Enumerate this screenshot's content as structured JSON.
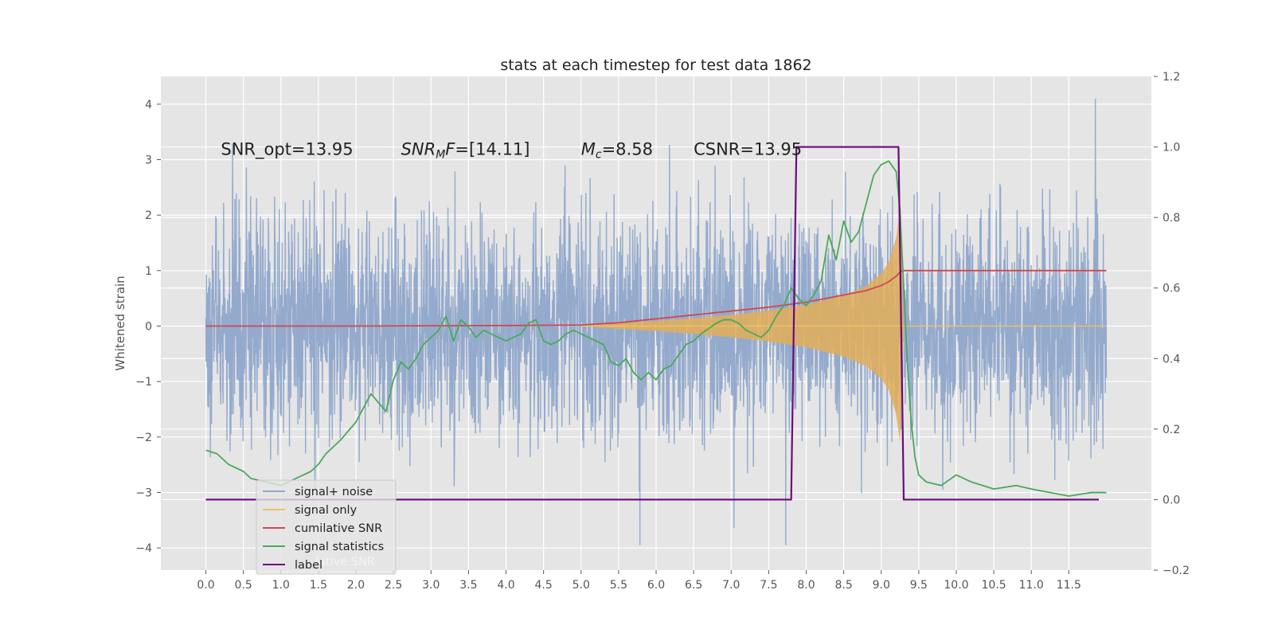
{
  "chart_data": {
    "type": "line",
    "title": "stats at each timestep for test data 1862",
    "xlabel": "",
    "ylabel": "Whitened strain",
    "y2label": "",
    "xlim": [
      -0.6,
      12.6
    ],
    "ylim": [
      -4.4,
      4.5
    ],
    "y2lim": [
      -0.2,
      1.2
    ],
    "x_ticks": [
      "0.0",
      "0.5",
      "1.0",
      "1.5",
      "2.0",
      "2.5",
      "3.0",
      "3.5",
      "4.0",
      "4.5",
      "5.0",
      "5.5",
      "6.0",
      "6.5",
      "7.0",
      "7.5",
      "8.0",
      "8.5",
      "9.0",
      "9.5",
      "10.0",
      "10.5",
      "11.0",
      "11.5"
    ],
    "y_ticks": [
      "4",
      "3",
      "2",
      "1",
      "0",
      "−1",
      "−2",
      "−3",
      "−4"
    ],
    "y2_ticks": [
      "1.2",
      "1.0",
      "0.8",
      "0.6",
      "0.4",
      "0.2",
      "0.0",
      "−0.2"
    ],
    "grid": true,
    "annotations": [
      {
        "segments": [
          {
            "text": "SNR_opt=13.95",
            "italic": false
          }
        ]
      },
      {
        "segments": [
          {
            "text": "SNR",
            "italic": true
          },
          {
            "text": "M",
            "italic": true,
            "sub": true
          },
          {
            "text": "F",
            "italic": true
          },
          {
            "text": "=[14.11]",
            "italic": false
          }
        ]
      },
      {
        "segments": [
          {
            "text": "M",
            "italic": true
          },
          {
            "text": "c",
            "italic": true,
            "sub": true
          },
          {
            "text": "=8.58",
            "italic": false
          }
        ]
      },
      {
        "segments": [
          {
            "text": "CSNR=13.95",
            "italic": false
          }
        ]
      }
    ],
    "legend": {
      "position": "lower-left",
      "entries": [
        {
          "label": "signal+ noise",
          "color": "#8fa6cb"
        },
        {
          "label": "signal only",
          "color": "#f2c45f"
        },
        {
          "label": "cumilative SNR",
          "color": "#d1484f"
        },
        {
          "label": "signal statistics",
          "color": "#4ba85a"
        },
        {
          "label": "label",
          "color": "#6a0b7a"
        }
      ],
      "ghost_text": "lative SNR"
    },
    "series": [
      {
        "name": "signal+ noise",
        "axis": "left",
        "kind": "noise",
        "x_range": [
          0.0,
          12.0
        ],
        "amplitude_std": 1.0,
        "max": 4.1,
        "min": -3.95
      },
      {
        "name": "signal only",
        "axis": "left",
        "kind": "chirp-envelope",
        "x_range": [
          5.0,
          9.3
        ],
        "envelope_x": [
          5.0,
          5.5,
          6.0,
          6.5,
          7.0,
          7.5,
          8.0,
          8.5,
          8.8,
          9.0,
          9.1,
          9.2,
          9.25,
          9.3
        ],
        "envelope_y": [
          0.0,
          0.05,
          0.09,
          0.14,
          0.2,
          0.28,
          0.38,
          0.55,
          0.72,
          0.95,
          1.15,
          1.6,
          2.1,
          0.0
        ]
      },
      {
        "name": "cumilative SNR",
        "axis": "left",
        "x": [
          0.0,
          1.0,
          2.0,
          3.0,
          4.0,
          5.0,
          5.5,
          6.0,
          6.5,
          7.0,
          7.5,
          8.0,
          8.5,
          8.8,
          9.0,
          9.1,
          9.2,
          9.25,
          9.3,
          10.0,
          11.0,
          12.0
        ],
        "y": [
          0.0,
          0.0,
          0.0,
          0.005,
          0.01,
          0.02,
          0.06,
          0.13,
          0.2,
          0.27,
          0.34,
          0.43,
          0.56,
          0.64,
          0.73,
          0.8,
          0.9,
          0.97,
          1.0,
          1.0,
          1.0,
          1.0
        ]
      },
      {
        "name": "signal statistics",
        "axis": "right",
        "x": [
          0.0,
          0.15,
          0.3,
          0.5,
          0.6,
          0.8,
          1.0,
          1.2,
          1.4,
          1.5,
          1.6,
          1.8,
          2.0,
          2.2,
          2.4,
          2.5,
          2.6,
          2.7,
          2.8,
          2.9,
          3.0,
          3.1,
          3.2,
          3.3,
          3.4,
          3.5,
          3.6,
          3.7,
          3.8,
          3.9,
          4.0,
          4.1,
          4.2,
          4.3,
          4.4,
          4.5,
          4.6,
          4.7,
          4.8,
          4.9,
          5.0,
          5.1,
          5.2,
          5.3,
          5.4,
          5.5,
          5.6,
          5.7,
          5.8,
          5.9,
          6.0,
          6.1,
          6.2,
          6.3,
          6.4,
          6.5,
          6.6,
          6.8,
          6.9,
          7.0,
          7.1,
          7.2,
          7.3,
          7.4,
          7.5,
          7.6,
          7.7,
          7.8,
          7.9,
          8.0,
          8.1,
          8.2,
          8.3,
          8.4,
          8.5,
          8.6,
          8.7,
          8.8,
          8.9,
          9.0,
          9.1,
          9.2,
          9.25,
          9.3,
          9.35,
          9.4,
          9.45,
          9.5,
          9.6,
          9.8,
          10.0,
          10.2,
          10.5,
          10.8,
          11.0,
          11.5,
          11.8,
          12.0
        ],
        "y": [
          0.14,
          0.13,
          0.1,
          0.08,
          0.06,
          0.05,
          0.04,
          0.06,
          0.08,
          0.1,
          0.13,
          0.17,
          0.22,
          0.3,
          0.25,
          0.34,
          0.39,
          0.37,
          0.4,
          0.44,
          0.46,
          0.48,
          0.52,
          0.45,
          0.51,
          0.49,
          0.46,
          0.48,
          0.47,
          0.46,
          0.45,
          0.46,
          0.47,
          0.5,
          0.51,
          0.45,
          0.44,
          0.45,
          0.47,
          0.48,
          0.47,
          0.46,
          0.45,
          0.44,
          0.39,
          0.38,
          0.4,
          0.36,
          0.34,
          0.36,
          0.34,
          0.37,
          0.38,
          0.41,
          0.44,
          0.45,
          0.47,
          0.5,
          0.51,
          0.51,
          0.5,
          0.48,
          0.47,
          0.46,
          0.48,
          0.52,
          0.55,
          0.6,
          0.57,
          0.55,
          0.58,
          0.62,
          0.75,
          0.68,
          0.79,
          0.73,
          0.76,
          0.84,
          0.92,
          0.95,
          0.96,
          0.93,
          0.82,
          0.6,
          0.38,
          0.22,
          0.12,
          0.07,
          0.05,
          0.04,
          0.07,
          0.05,
          0.03,
          0.04,
          0.03,
          0.01,
          0.02,
          0.02
        ]
      },
      {
        "name": "label",
        "axis": "right",
        "x": [
          0.0,
          7.8,
          7.87,
          9.23,
          9.3,
          11.9
        ],
        "y": [
          0.0,
          0.0,
          1.0,
          1.0,
          0.0,
          0.0
        ]
      }
    ]
  }
}
